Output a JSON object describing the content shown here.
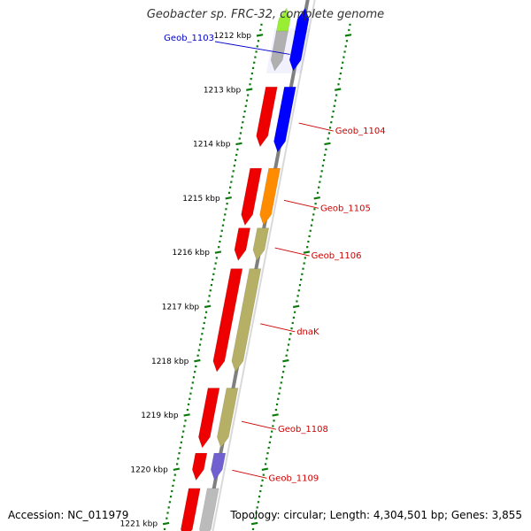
{
  "title": "Geobacter sp. FRC-32, complete genome",
  "accession_text": "Accession: NC_011979",
  "stats_text": "Topology: circular; Length: 4,304,501 bp; Genes: 3,855",
  "colors": {
    "backbone_dark": "#808080",
    "backbone_light": "#d9d9d9",
    "tick_dots": "#0a7a0a",
    "selected_label": "#0000cc",
    "gene_label": "#cc0000"
  },
  "kbp_ticks": [
    {
      "kbp": 1212,
      "label": "1212 kbp"
    },
    {
      "kbp": 1213,
      "label": "1213 kbp"
    },
    {
      "kbp": 1214,
      "label": "1214 kbp"
    },
    {
      "kbp": 1215,
      "label": "1215 kbp"
    },
    {
      "kbp": 1216,
      "label": "1216 kbp"
    },
    {
      "kbp": 1217,
      "label": "1217 kbp"
    },
    {
      "kbp": 1218,
      "label": "1218 kbp"
    },
    {
      "kbp": 1219,
      "label": "1219 kbp"
    },
    {
      "kbp": 1220,
      "label": "1220 kbp"
    },
    {
      "kbp": 1221,
      "label": "1221 kbp"
    }
  ],
  "genes": [
    {
      "id": "g00",
      "start": 1211.5,
      "end": 1211.95,
      "strand": "+",
      "lane": "outer",
      "color": "#0000ff",
      "label": ""
    },
    {
      "id": "g01",
      "start": 1211.5,
      "end": 1211.95,
      "strand": "+",
      "lane": "inner",
      "color": "#99ee33",
      "label": ""
    },
    {
      "id": "g02",
      "start": 1211.92,
      "end": 1212.65,
      "strand": "-",
      "lane": "outer",
      "color": "#0000ff",
      "label": "Geob_1103",
      "label_color": "#0000cc",
      "selected": true
    },
    {
      "id": "g03",
      "start": 1211.92,
      "end": 1212.65,
      "strand": "-",
      "lane": "inner",
      "color": "#b0b0b0",
      "label": ""
    },
    {
      "id": "g04",
      "start": 1212.95,
      "end": 1214.15,
      "strand": "-",
      "lane": "outer",
      "color": "#0000ff",
      "label": "Geob_1104",
      "label_color": "#cc0000"
    },
    {
      "id": "g05",
      "start": 1212.95,
      "end": 1214.05,
      "strand": "-",
      "lane": "inner",
      "color": "#ee0000",
      "label": ""
    },
    {
      "id": "g06",
      "start": 1214.45,
      "end": 1215.5,
      "strand": "-",
      "lane": "outer",
      "color": "#ff8c00",
      "label": "Geob_1105",
      "label_color": "#cc0000"
    },
    {
      "id": "g07",
      "start": 1214.45,
      "end": 1215.5,
      "strand": "-",
      "lane": "inner",
      "color": "#ee0000",
      "label": ""
    },
    {
      "id": "g08",
      "start": 1215.55,
      "end": 1216.15,
      "strand": "-",
      "lane": "outer",
      "color": "#b5b065",
      "label": "Geob_1106",
      "label_color": "#cc0000"
    },
    {
      "id": "g09",
      "start": 1215.55,
      "end": 1216.15,
      "strand": "-",
      "lane": "inner",
      "color": "#ee0000",
      "label": ""
    },
    {
      "id": "g10",
      "start": 1216.3,
      "end": 1218.2,
      "strand": "-",
      "lane": "outer",
      "color": "#b5b065",
      "label": "dnaK",
      "label_color": "#cc0000"
    },
    {
      "id": "g11",
      "start": 1216.3,
      "end": 1218.2,
      "strand": "-",
      "lane": "inner",
      "color": "#ee0000",
      "label": ""
    },
    {
      "id": "g12",
      "start": 1218.5,
      "end": 1219.6,
      "strand": "-",
      "lane": "outer",
      "color": "#b5b065",
      "label": "Geob_1108",
      "label_color": "#cc0000"
    },
    {
      "id": "g13",
      "start": 1218.5,
      "end": 1219.6,
      "strand": "-",
      "lane": "inner",
      "color": "#ee0000",
      "label": ""
    },
    {
      "id": "g14",
      "start": 1219.7,
      "end": 1220.2,
      "strand": "-",
      "lane": "outer",
      "color": "#7060d0",
      "label": "Geob_1109",
      "label_color": "#cc0000"
    },
    {
      "id": "g15",
      "start": 1219.7,
      "end": 1220.2,
      "strand": "-",
      "lane": "inner",
      "color": "#ee0000",
      "label": ""
    },
    {
      "id": "g16",
      "start": 1220.35,
      "end": 1221.3,
      "strand": "-",
      "lane": "outer",
      "color": "#bbbbbb",
      "label": ""
    },
    {
      "id": "g17",
      "start": 1220.35,
      "end": 1221.3,
      "strand": "-",
      "lane": "inner",
      "color": "#ee0000",
      "label": ""
    }
  ]
}
